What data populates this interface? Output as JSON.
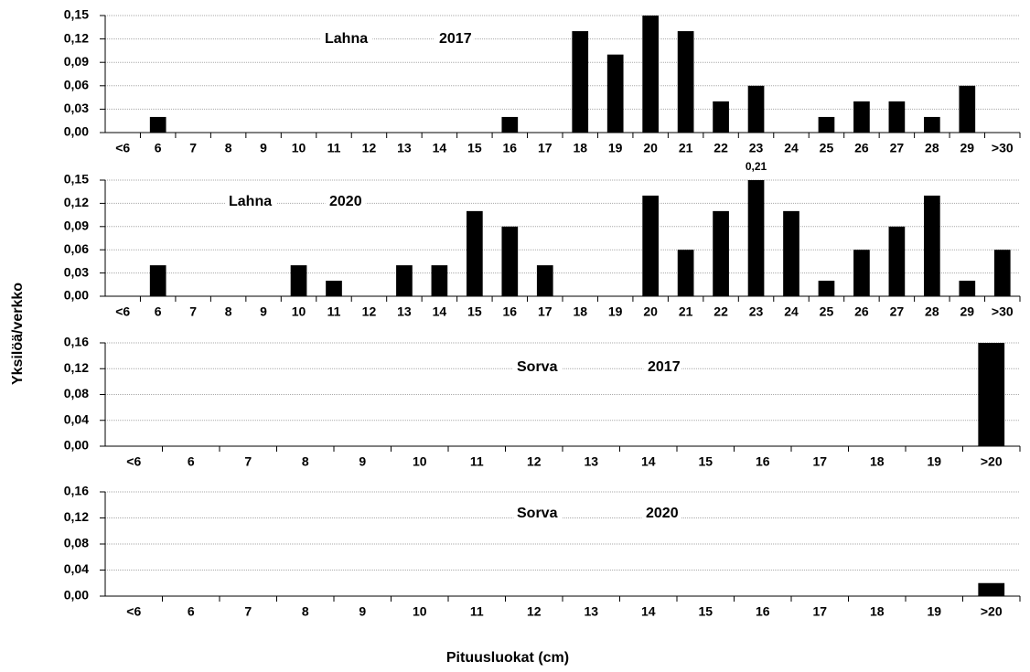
{
  "ylabel": "Yksilöä/verkko",
  "xlabel": "Pituusluokat (cm)",
  "chart_data": [
    {
      "type": "bar",
      "annotations": [
        "Lahna",
        "2017"
      ],
      "color": "#000000",
      "grid": true,
      "categories": [
        "<6",
        "6",
        "7",
        "8",
        "9",
        "10",
        "11",
        "12",
        "13",
        "14",
        "15",
        "16",
        "17",
        "18",
        "19",
        "20",
        "21",
        "22",
        "23",
        "24",
        "25",
        "26",
        "27",
        "28",
        "29",
        ">30"
      ],
      "values": [
        0,
        0.02,
        0,
        0,
        0,
        0,
        0,
        0,
        0,
        0,
        0,
        0.02,
        0,
        0.13,
        0.1,
        0.15,
        0.13,
        0.04,
        0.06,
        0,
        0.02,
        0.04,
        0.04,
        0.02,
        0.06,
        0
      ],
      "ylim": [
        0,
        0.15
      ],
      "yticks": [
        {
          "value": 0,
          "label": "0,00"
        },
        {
          "value": 0.03,
          "label": "0,03"
        },
        {
          "value": 0.06,
          "label": "0,06"
        },
        {
          "value": 0.09,
          "label": "0,09"
        },
        {
          "value": 0.12,
          "label": "0,12"
        },
        {
          "value": 0.15,
          "label": "0,15"
        }
      ]
    },
    {
      "type": "bar",
      "annotations": [
        "Lahna",
        "2020"
      ],
      "color": "#000000",
      "grid": true,
      "categories": [
        "<6",
        "6",
        "7",
        "8",
        "9",
        "10",
        "11",
        "12",
        "13",
        "14",
        "15",
        "16",
        "17",
        "18",
        "19",
        "20",
        "21",
        "22",
        "23",
        "24",
        "25",
        "26",
        "27",
        "28",
        "29",
        ">30"
      ],
      "values": [
        0,
        0.04,
        0,
        0,
        0,
        0.04,
        0.02,
        0,
        0.04,
        0.04,
        0.11,
        0.09,
        0.04,
        0,
        0,
        0.13,
        0.06,
        0.11,
        0.21,
        0.11,
        0.02,
        0.06,
        0.09,
        0.13,
        0.02,
        0.06
      ],
      "value_labels": [
        null,
        null,
        null,
        null,
        null,
        null,
        null,
        null,
        null,
        null,
        null,
        null,
        null,
        null,
        null,
        null,
        null,
        null,
        "0,21",
        null,
        null,
        null,
        null,
        null,
        null,
        null
      ],
      "ylim": [
        0,
        0.15
      ],
      "yticks": [
        {
          "value": 0,
          "label": "0,00"
        },
        {
          "value": 0.03,
          "label": "0,03"
        },
        {
          "value": 0.06,
          "label": "0,06"
        },
        {
          "value": 0.09,
          "label": "0,09"
        },
        {
          "value": 0.12,
          "label": "0,12"
        },
        {
          "value": 0.15,
          "label": "0,15"
        }
      ]
    },
    {
      "type": "bar",
      "annotations": [
        "Sorva",
        "2017"
      ],
      "color": "#000000",
      "grid": true,
      "categories": [
        "<6",
        "6",
        "7",
        "8",
        "9",
        "10",
        "11",
        "12",
        "13",
        "14",
        "15",
        "16",
        "17",
        "18",
        "19",
        ">20"
      ],
      "values": [
        0,
        0,
        0,
        0,
        0,
        0,
        0,
        0,
        0,
        0,
        0,
        0,
        0,
        0,
        0,
        0.16
      ],
      "ylim": [
        0,
        0.16
      ],
      "yticks": [
        {
          "value": 0,
          "label": "0,00"
        },
        {
          "value": 0.04,
          "label": "0,04"
        },
        {
          "value": 0.08,
          "label": "0,08"
        },
        {
          "value": 0.12,
          "label": "0,12"
        },
        {
          "value": 0.16,
          "label": "0,16"
        }
      ]
    },
    {
      "type": "bar",
      "annotations": [
        "Sorva",
        "2020"
      ],
      "color": "#000000",
      "grid": true,
      "categories": [
        "<6",
        "6",
        "7",
        "8",
        "9",
        "10",
        "11",
        "12",
        "13",
        "14",
        "15",
        "16",
        "17",
        "18",
        "19",
        ">20"
      ],
      "values": [
        0,
        0,
        0,
        0,
        0,
        0,
        0,
        0,
        0,
        0,
        0,
        0,
        0,
        0,
        0,
        0.02
      ],
      "ylim": [
        0,
        0.16
      ],
      "yticks": [
        {
          "value": 0,
          "label": "0,00"
        },
        {
          "value": 0.04,
          "label": "0,04"
        },
        {
          "value": 0.08,
          "label": "0,08"
        },
        {
          "value": 0.12,
          "label": "0,12"
        },
        {
          "value": 0.16,
          "label": "0,16"
        }
      ]
    }
  ]
}
